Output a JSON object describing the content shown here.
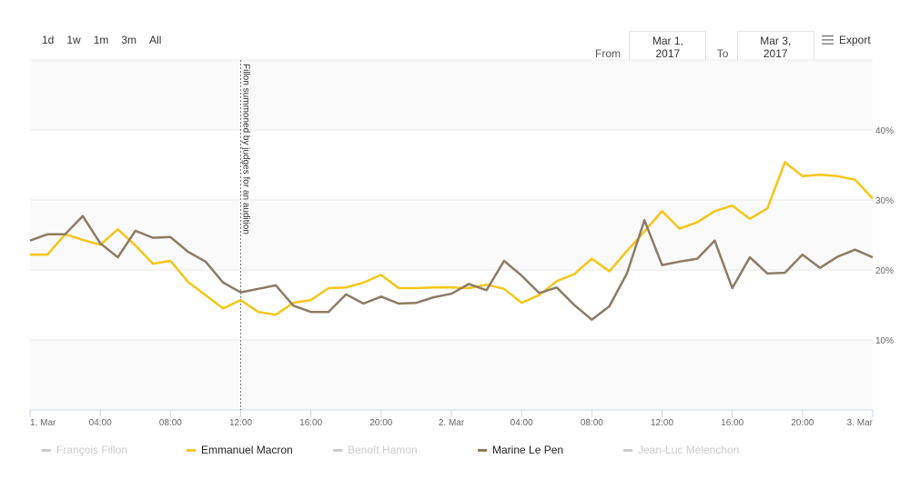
{
  "toolbar": {
    "ranges": [
      "1d",
      "1w",
      "1m",
      "3m",
      "All"
    ],
    "from_label": "From",
    "from_value": "Mar 1, 2017",
    "to_label": "To",
    "to_value": "Mar 3, 2017",
    "export_label": "Export",
    "export_icon": "menu-icon"
  },
  "colors": {
    "macron": "#f5c518",
    "lepen": "#8c7b63",
    "inactive": "#cccccc",
    "band": "#fafafa",
    "grid": "#e9e9e9",
    "axis": "#ccd6eb"
  },
  "chart_data": {
    "type": "line",
    "title": "",
    "xlabel": "",
    "ylabel": "",
    "x_unit": "hours since 1 Mar 2017 00:00",
    "xlim": [
      0,
      48
    ],
    "ylim": [
      0,
      50
    ],
    "grid": true,
    "y_ticks": [
      10,
      20,
      30,
      40
    ],
    "y_tick_labels": [
      "10%",
      "20%",
      "30%",
      "40%"
    ],
    "x_ticks": [
      0,
      4,
      8,
      12,
      16,
      20,
      24,
      28,
      32,
      36,
      40,
      44,
      48
    ],
    "x_tick_labels": [
      "1. Mar",
      "04:00",
      "08:00",
      "12:00",
      "16:00",
      "20:00",
      "2. Mar",
      "04:00",
      "08:00",
      "12:00",
      "16:00",
      "20:00",
      "3. Mar"
    ],
    "annotation": {
      "x": 12,
      "text": "Fillon summoned by judges for an audition"
    },
    "legend_position": "bottom",
    "series": [
      {
        "name": "François Fillon",
        "visible": false,
        "values": []
      },
      {
        "name": "Emmanuel Macron",
        "visible": true,
        "values": [
          22.2,
          22.2,
          25.1,
          24.3,
          23.6,
          25.8,
          23.5,
          20.9,
          21.3,
          18.3,
          16.4,
          14.5,
          15.7,
          14.0,
          13.6,
          15.3,
          15.7,
          17.4,
          17.5,
          18.2,
          19.3,
          17.4,
          17.4,
          17.5,
          17.5,
          17.4,
          17.9,
          17.3,
          15.3,
          16.4,
          18.4,
          19.4,
          21.6,
          19.8,
          22.7,
          25.5,
          28.4,
          25.9,
          26.8,
          28.4,
          29.2,
          27.3,
          28.8,
          35.4,
          33.4,
          33.6,
          33.4,
          32.9,
          30.2
        ]
      },
      {
        "name": "Benoît Hamon",
        "visible": false,
        "values": []
      },
      {
        "name": "Marine Le Pen",
        "visible": true,
        "values": [
          24.2,
          25.1,
          25.1,
          27.7,
          23.8,
          21.8,
          25.6,
          24.6,
          24.7,
          22.6,
          21.2,
          18.2,
          16.8,
          17.3,
          17.8,
          14.9,
          14.0,
          14.0,
          16.5,
          15.2,
          16.2,
          15.2,
          15.3,
          16.1,
          16.6,
          18.0,
          17.1,
          21.3,
          19.2,
          16.7,
          17.5,
          15.0,
          12.9,
          14.8,
          19.5,
          27.1,
          20.7,
          21.2,
          21.6,
          24.2,
          17.4,
          21.8,
          19.5,
          19.6,
          22.2,
          20.3,
          21.9,
          22.9,
          21.8
        ]
      },
      {
        "name": "Jean-Luc Mélenchon",
        "visible": false,
        "values": []
      }
    ]
  }
}
